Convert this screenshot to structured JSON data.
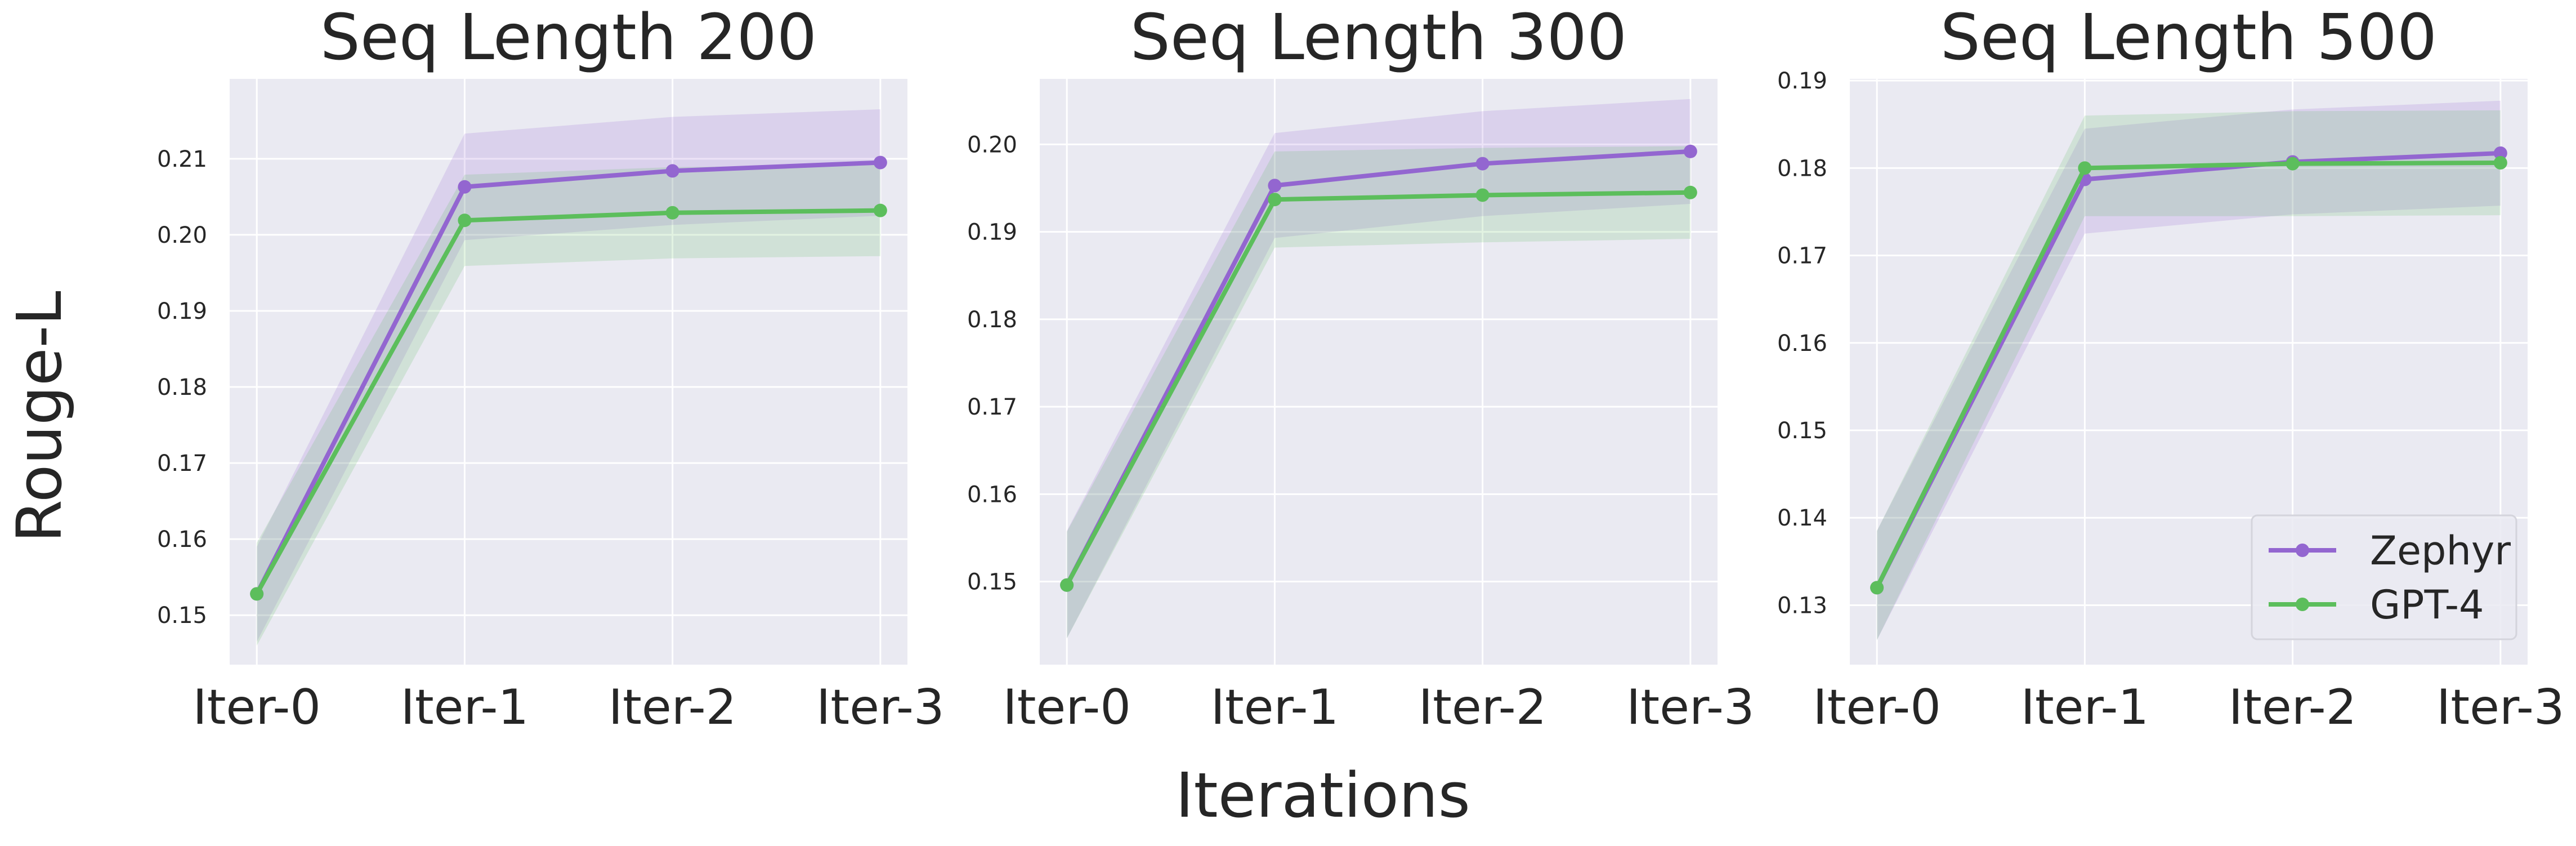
{
  "figure": {
    "ylabel": "Rouge-L",
    "xlabel": "Iterations"
  },
  "legend": {
    "placement": "lower-right",
    "entries": [
      "Zephyr",
      "GPT-4"
    ]
  },
  "colors": {
    "background": "#EAEAF2",
    "grid": "#FFFFFF",
    "zephyr": "#9366D0",
    "gpt4": "#5CBE5C"
  },
  "chart_data": [
    {
      "type": "line",
      "title": "Seq Length 200",
      "categories": [
        "Iter-0",
        "Iter-1",
        "Iter-2",
        "Iter-3"
      ],
      "yticks": [
        "0.15",
        "0.16",
        "0.17",
        "0.18",
        "0.19",
        "0.20",
        "0.21"
      ],
      "ylim": [
        0.1435,
        0.2205
      ],
      "grid": true,
      "series": [
        {
          "name": "Zephyr",
          "values": [
            0.1528,
            0.2063,
            0.2084,
            0.2095
          ],
          "upper": [
            0.159,
            0.2133,
            0.2155,
            0.2165
          ],
          "lower": [
            0.1465,
            0.1993,
            0.2013,
            0.2025
          ]
        },
        {
          "name": "GPT-4",
          "values": [
            0.1528,
            0.2019,
            0.2029,
            0.2032
          ],
          "upper": [
            0.1595,
            0.2079,
            0.2089,
            0.2092
          ],
          "lower": [
            0.146,
            0.1959,
            0.1969,
            0.1972
          ]
        }
      ]
    },
    {
      "type": "line",
      "title": "Seq Length 300",
      "categories": [
        "Iter-0",
        "Iter-1",
        "Iter-2",
        "Iter-3"
      ],
      "yticks": [
        "0.15",
        "0.16",
        "0.17",
        "0.18",
        "0.19",
        "0.20"
      ],
      "ylim": [
        0.1405,
        0.2075
      ],
      "grid": true,
      "series": [
        {
          "name": "Zephyr",
          "values": [
            0.1496,
            0.1953,
            0.1978,
            0.1992
          ],
          "upper": [
            0.1558,
            0.2013,
            0.2038,
            0.2052
          ],
          "lower": [
            0.1435,
            0.1893,
            0.1918,
            0.1932
          ]
        },
        {
          "name": "GPT-4",
          "values": [
            0.1496,
            0.1937,
            0.1942,
            0.1945
          ],
          "upper": [
            0.1557,
            0.1992,
            0.1996,
            0.1998
          ],
          "lower": [
            0.1435,
            0.1882,
            0.1888,
            0.1892
          ]
        }
      ]
    },
    {
      "type": "line",
      "title": "Seq Length 500",
      "categories": [
        "Iter-0",
        "Iter-1",
        "Iter-2",
        "Iter-3"
      ],
      "yticks": [
        "0.13",
        "0.14",
        "0.15",
        "0.16",
        "0.17",
        "0.18",
        "0.19"
      ],
      "ylim": [
        0.1232,
        0.1902
      ],
      "grid": true,
      "series": [
        {
          "name": "Zephyr",
          "values": [
            0.132,
            0.1787,
            0.1807,
            0.1817
          ],
          "upper": [
            0.1385,
            0.1845,
            0.1867,
            0.1877
          ],
          "lower": [
            0.126,
            0.1725,
            0.1747,
            0.1757
          ]
        },
        {
          "name": "GPT-4",
          "values": [
            0.132,
            0.18,
            0.1805,
            0.1806
          ],
          "upper": [
            0.1385,
            0.186,
            0.1865,
            0.1866
          ],
          "lower": [
            0.126,
            0.1745,
            0.1745,
            0.1746
          ]
        }
      ]
    }
  ]
}
